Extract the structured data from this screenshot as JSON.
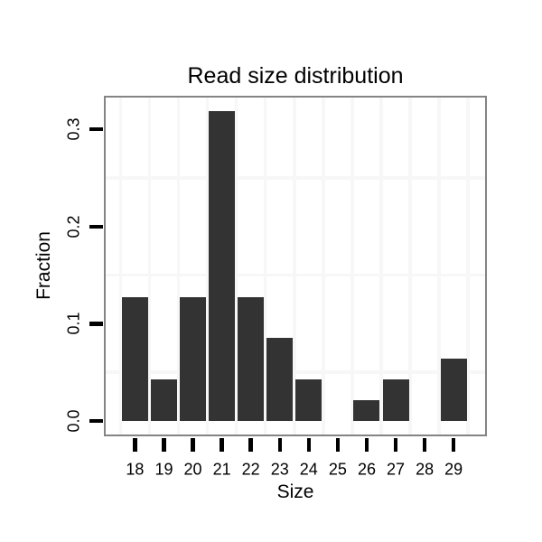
{
  "chart_data": {
    "type": "bar",
    "title": "Read size distribution",
    "xlabel": "Size",
    "ylabel": "Fraction",
    "categories": [
      "18",
      "19",
      "20",
      "21",
      "22",
      "23",
      "24",
      "25",
      "26",
      "27",
      "28",
      "29"
    ],
    "values": [
      0.1277,
      0.0426,
      0.1277,
      0.3191,
      0.1277,
      0.0851,
      0.0426,
      0,
      0.0213,
      0.0426,
      0,
      0.0638
    ],
    "y_ticks": [
      {
        "value": 0.0,
        "label": "0.0"
      },
      {
        "value": 0.1,
        "label": "0.1"
      },
      {
        "value": 0.2,
        "label": "0.2"
      },
      {
        "value": 0.3,
        "label": "0.3"
      }
    ],
    "ylim": [
      0,
      0.333
    ],
    "grid": {
      "h_minor_lines": [
        0.05,
        0.15,
        0.25
      ],
      "v_minor_lines": "category-boundaries",
      "grid_on": true
    },
    "legend": "none",
    "bar_color": "#333333",
    "panel_border_color": "#848484",
    "gridline_color": "#f7f7f7",
    "text_color": "#000000",
    "background_color": "#ffffff"
  }
}
